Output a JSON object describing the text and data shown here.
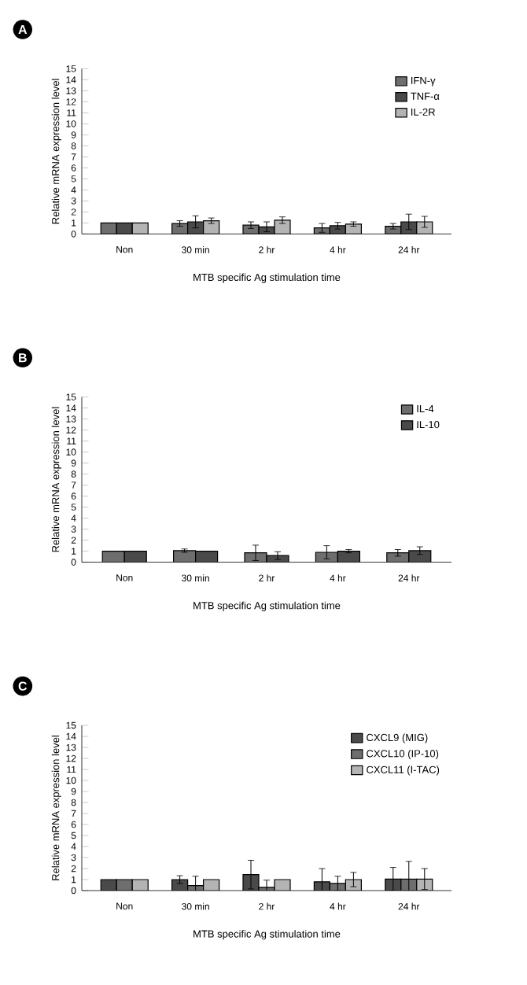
{
  "chart_data": [
    {
      "type": "bar",
      "title": "A",
      "xlabel": "MTB specific Ag stimulation time",
      "ylabel": "Relative mRNA expression level",
      "categories": [
        "Non",
        "30 min",
        "2 hr",
        "4 hr",
        "24 hr"
      ],
      "ylim": [
        0,
        15
      ],
      "yticks": [
        0,
        1,
        2,
        3,
        4,
        5,
        6,
        7,
        8,
        9,
        10,
        11,
        12,
        13,
        14,
        15
      ],
      "legend": "top right",
      "grid": false,
      "series": [
        {
          "name": "IFN-γ",
          "color": "#6e6e6e",
          "values": [
            1,
            0.95,
            0.8,
            0.55,
            0.7
          ],
          "errors": [
            null,
            0.25,
            0.3,
            0.4,
            0.25
          ]
        },
        {
          "name": "TNF-α",
          "color": "#4a4a4a",
          "values": [
            1,
            1.1,
            0.65,
            0.75,
            1.1
          ],
          "errors": [
            null,
            0.55,
            0.45,
            0.3,
            0.7
          ]
        },
        {
          "name": "IL-2R",
          "color": "#b4b4b4",
          "values": [
            1,
            1.2,
            1.25,
            0.9,
            1.1
          ],
          "errors": [
            null,
            0.25,
            0.3,
            0.2,
            0.5
          ]
        }
      ]
    },
    {
      "type": "bar",
      "title": "B",
      "xlabel": "MTB specific Ag stimulation time",
      "ylabel": "Relative mRNA expression level",
      "categories": [
        "Non",
        "30 min",
        "2 hr",
        "4 hr",
        "24 hr"
      ],
      "ylim": [
        0,
        15
      ],
      "yticks": [
        0,
        1,
        2,
        3,
        4,
        5,
        6,
        7,
        8,
        9,
        10,
        11,
        12,
        13,
        14,
        15
      ],
      "legend": "top right",
      "grid": false,
      "series": [
        {
          "name": "IL-4",
          "color": "#6e6e6e",
          "values": [
            1,
            1.05,
            0.85,
            0.9,
            0.85
          ],
          "errors": [
            null,
            0.15,
            0.7,
            0.6,
            0.3
          ]
        },
        {
          "name": "IL-10",
          "color": "#4a4a4a",
          "values": [
            1,
            1.0,
            0.6,
            1.0,
            1.05
          ],
          "errors": [
            null,
            null,
            0.35,
            0.15,
            0.35
          ]
        }
      ]
    },
    {
      "type": "bar",
      "title": "C",
      "xlabel": "MTB specific Ag stimulation time",
      "ylabel": "Relative mRNA expression level",
      "categories": [
        "Non",
        "30 min",
        "2 hr",
        "4 hr",
        "24 hr"
      ],
      "ylim": [
        0,
        15
      ],
      "yticks": [
        0,
        1,
        2,
        3,
        4,
        5,
        6,
        7,
        8,
        9,
        10,
        11,
        12,
        13,
        14,
        15
      ],
      "legend": "top right",
      "grid": false,
      "series": [
        {
          "name": "CXCL9 (MIG)",
          "color": "#4a4a4a",
          "values": [
            1,
            1.0,
            1.45,
            0.8,
            1.05
          ],
          "errors": [
            null,
            0.35,
            1.3,
            1.2,
            1.05
          ]
        },
        {
          "name": "CXCL10 (IP-10)",
          "color": "#6e6e6e",
          "values": [
            1,
            0.45,
            0.3,
            0.65,
            1.05
          ],
          "errors": [
            null,
            0.85,
            0.65,
            0.65,
            1.6
          ]
        },
        {
          "name": "CXCL11 (I-TAC)",
          "color": "#b4b4b4",
          "values": [
            1,
            1.0,
            1.0,
            1.0,
            1.05
          ],
          "errors": [
            null,
            null,
            null,
            0.65,
            0.95
          ]
        }
      ]
    }
  ]
}
